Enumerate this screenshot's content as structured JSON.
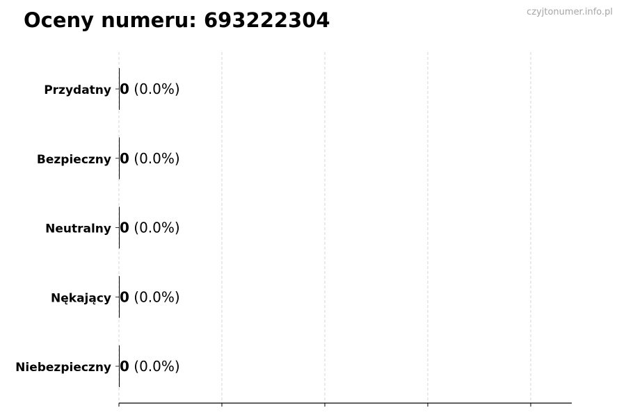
{
  "header": {
    "title": "Oceny numeru: 693222304",
    "watermark": "czyjtonumer.info.pl"
  },
  "chart_data": {
    "type": "bar",
    "orientation": "horizontal",
    "title": "Oceny numeru: 693222304",
    "categories": [
      "Przydatny",
      "Bezpieczny",
      "Neutralny",
      "Nękający",
      "Niebezpieczny"
    ],
    "values": [
      0,
      0,
      0,
      0,
      0
    ],
    "data_labels": [
      {
        "count": "0",
        "percent": "(0.0%)"
      },
      {
        "count": "0",
        "percent": "(0.0%)"
      },
      {
        "count": "0",
        "percent": "(0.0%)"
      },
      {
        "count": "0",
        "percent": "(0.0%)"
      },
      {
        "count": "0",
        "percent": "(0.0%)"
      }
    ],
    "xlabel": "",
    "ylabel": "",
    "grid": "vertical dashed",
    "bar_color": "#000000"
  }
}
